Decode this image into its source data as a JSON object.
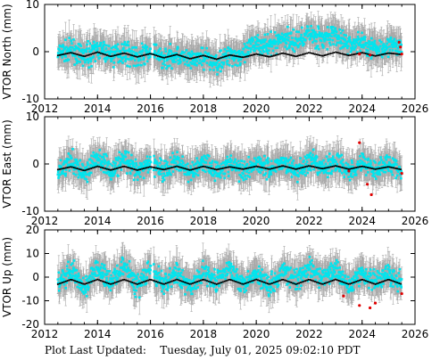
{
  "chart_data": [
    {
      "type": "scatter",
      "ylabel": "VTOR North (mm)",
      "ylim": [
        -10,
        10
      ],
      "yticks": [
        -10,
        0,
        10
      ],
      "xlim": [
        2012,
        2026
      ],
      "xticks": [
        2012,
        2014,
        2016,
        2018,
        2020,
        2022,
        2024,
        2026
      ],
      "grid": false,
      "series": [
        {
          "role": "observed",
          "color": "#00e5ee",
          "x": [
            2012.5,
            2013.0,
            2013.5,
            2014.0,
            2014.5,
            2015.0,
            2015.5,
            2016.0,
            2016.5,
            2017.0,
            2017.5,
            2018.0,
            2018.5,
            2019.0,
            2019.5,
            2020.0,
            2020.5,
            2021.0,
            2021.5,
            2022.0,
            2022.5,
            2023.0,
            2023.5,
            2024.0,
            2024.5,
            2025.0,
            2025.5
          ],
          "y": [
            -0.5,
            0.3,
            -1.0,
            0.5,
            -0.8,
            0.2,
            -1.2,
            0.0,
            -1.5,
            -0.5,
            -2.0,
            -1.0,
            -2.5,
            -0.5,
            -1.0,
            2.0,
            1.0,
            3.0,
            2.0,
            4.0,
            2.5,
            3.5,
            1.5,
            2.0,
            0.5,
            1.5,
            0.5
          ]
        },
        {
          "role": "model",
          "color": "#000000",
          "x": [
            2012.5,
            2013.0,
            2013.5,
            2014.0,
            2014.5,
            2015.0,
            2015.5,
            2016.0,
            2016.5,
            2017.0,
            2017.5,
            2018.0,
            2018.5,
            2019.0,
            2019.5,
            2020.0,
            2020.5,
            2021.0,
            2021.5,
            2022.0,
            2022.5,
            2023.0,
            2023.5,
            2024.0,
            2024.5,
            2025.0,
            2025.5
          ],
          "y": [
            -0.8,
            -0.2,
            -1.0,
            -0.1,
            -1.0,
            -0.3,
            -1.1,
            -0.4,
            -1.3,
            -0.6,
            -1.5,
            -0.8,
            -1.6,
            -0.7,
            -1.2,
            -0.5,
            -1.1,
            -0.3,
            -1.0,
            -0.2,
            -0.9,
            -0.1,
            -0.8,
            -0.2,
            -0.9,
            -0.3,
            -0.6
          ]
        },
        {
          "role": "outlier",
          "color": "#e00000",
          "x": [
            2023.9,
            2024.3,
            2025.4,
            2025.45,
            2025.5
          ],
          "y": [
            -0.5,
            -0.7,
            2.0,
            1.0,
            -0.5
          ]
        }
      ]
    },
    {
      "type": "scatter",
      "ylabel": "VTOR East (mm)",
      "ylim": [
        -10,
        10
      ],
      "yticks": [
        -10,
        0,
        10
      ],
      "xlim": [
        2012,
        2026
      ],
      "xticks": [
        2012,
        2014,
        2016,
        2018,
        2020,
        2022,
        2024,
        2026
      ],
      "grid": false,
      "series": [
        {
          "role": "observed",
          "color": "#00e5ee",
          "x": [
            2012.5,
            2013.0,
            2013.5,
            2014.0,
            2014.5,
            2015.0,
            2015.5,
            2016.0,
            2016.5,
            2017.0,
            2017.5,
            2018.0,
            2018.5,
            2019.0,
            2019.5,
            2020.0,
            2020.5,
            2021.0,
            2021.5,
            2022.0,
            2022.5,
            2023.0,
            2023.5,
            2024.0,
            2024.5,
            2025.0,
            2025.5
          ],
          "y": [
            -1.5,
            0.5,
            -2.0,
            1.5,
            -1.5,
            1.0,
            -2.0,
            0.5,
            -1.5,
            0.5,
            -2.0,
            0.5,
            -1.5,
            0.0,
            -1.5,
            0.5,
            -1.0,
            0.5,
            -1.5,
            0.5,
            -1.0,
            0.5,
            -1.5,
            0.5,
            -1.0,
            0.0,
            -1.5
          ]
        },
        {
          "role": "model",
          "color": "#000000",
          "x": [
            2012.5,
            2013.0,
            2013.5,
            2014.0,
            2014.5,
            2015.0,
            2015.5,
            2016.0,
            2016.5,
            2017.0,
            2017.5,
            2018.0,
            2018.5,
            2019.0,
            2019.5,
            2020.0,
            2020.5,
            2021.0,
            2021.5,
            2022.0,
            2022.5,
            2023.0,
            2023.5,
            2024.0,
            2024.5,
            2025.0,
            2025.5
          ],
          "y": [
            -1.2,
            -0.6,
            -1.4,
            -0.5,
            -1.3,
            -0.5,
            -1.3,
            -0.6,
            -1.2,
            -0.5,
            -1.3,
            -0.5,
            -1.2,
            -0.6,
            -1.1,
            -0.5,
            -1.1,
            -0.4,
            -1.1,
            -0.4,
            -1.0,
            -0.4,
            -1.1,
            -0.5,
            -1.1,
            -0.6,
            -1.2
          ]
        },
        {
          "role": "outlier",
          "color": "#e00000",
          "x": [
            2023.5,
            2023.9,
            2024.2,
            2024.35,
            2025.5
          ],
          "y": [
            -1.5,
            4.5,
            -4.3,
            -6.5,
            -2.0
          ]
        }
      ]
    },
    {
      "type": "scatter",
      "ylabel": "VTOR Up (mm)",
      "ylim": [
        -20,
        20
      ],
      "yticks": [
        -20,
        -10,
        0,
        10,
        20
      ],
      "xlim": [
        2012,
        2026
      ],
      "xticks": [
        2012,
        2014,
        2016,
        2018,
        2020,
        2022,
        2024,
        2026
      ],
      "xtick_labels_shown": true,
      "grid": false,
      "series": [
        {
          "role": "observed",
          "color": "#00e5ee",
          "x": [
            2012.5,
            2013.0,
            2013.5,
            2014.0,
            2014.5,
            2015.0,
            2015.5,
            2016.0,
            2016.5,
            2017.0,
            2017.5,
            2018.0,
            2018.5,
            2019.0,
            2019.5,
            2020.0,
            2020.5,
            2021.0,
            2021.5,
            2022.0,
            2022.5,
            2023.0,
            2023.5,
            2024.0,
            2024.5,
            2025.0,
            2025.5
          ],
          "y": [
            -3,
            3,
            -5,
            4,
            -2,
            5,
            -4,
            3,
            -3,
            2,
            -5,
            3,
            -2,
            4,
            -3,
            2,
            -4,
            3,
            -2,
            4,
            -1,
            3,
            -3,
            2,
            -2,
            1,
            -3
          ]
        },
        {
          "role": "model",
          "color": "#000000",
          "x": [
            2012.5,
            2013.0,
            2013.5,
            2014.0,
            2014.5,
            2015.0,
            2015.5,
            2016.0,
            2016.5,
            2017.0,
            2017.5,
            2018.0,
            2018.5,
            2019.0,
            2019.5,
            2020.0,
            2020.5,
            2021.0,
            2021.5,
            2022.0,
            2022.5,
            2023.0,
            2023.5,
            2024.0,
            2024.5,
            2025.0,
            2025.5
          ],
          "y": [
            -3,
            -1,
            -3,
            -1,
            -3,
            -1,
            -3,
            -1,
            -3,
            -1,
            -3,
            -1,
            -3,
            -1,
            -3,
            -1,
            -3,
            -1,
            -3,
            -1,
            -3,
            -1,
            -3,
            -1,
            -3,
            -1,
            -3
          ]
        },
        {
          "role": "outlier",
          "color": "#e00000",
          "x": [
            2023.3,
            2023.9,
            2024.3,
            2024.5,
            2025.5
          ],
          "y": [
            -8,
            -12,
            -13,
            -11,
            -7
          ]
        }
      ]
    }
  ],
  "error_bar_color": "#a8a8a8",
  "footer": {
    "label": "Plot Last Updated:",
    "timestamp": "Tuesday, July 01, 2025 09:02:10 PDT"
  }
}
